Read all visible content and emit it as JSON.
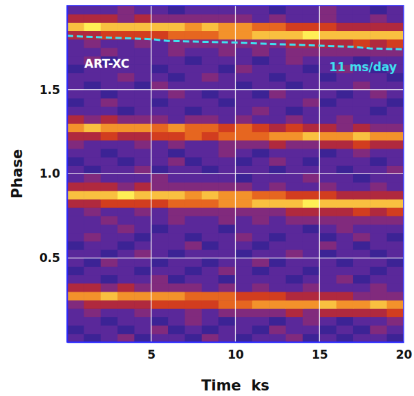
{
  "chart_data": {
    "type": "heatmap",
    "xlabel": "Time  ks",
    "ylabel": "Phase",
    "xlim": [
      0,
      20
    ],
    "ylim": [
      0,
      2
    ],
    "xticks": [
      5,
      10,
      15,
      20
    ],
    "yticks": [
      0.5,
      {
        "value": 1,
        "label": "1.0"
      },
      1.5
    ],
    "grid": true,
    "x_bins": [
      0,
      1,
      2,
      3,
      4,
      5,
      6,
      7,
      8,
      9,
      10,
      11,
      12,
      13,
      14,
      15,
      16,
      17,
      18,
      19,
      20
    ],
    "y_bins": [
      0,
      0.05,
      0.1,
      0.15,
      0.2,
      0.25,
      0.3,
      0.35,
      0.4,
      0.45,
      0.5,
      0.55,
      0.6,
      0.65,
      0.7,
      0.75,
      0.8,
      0.85,
      0.9,
      0.95,
      1,
      1.05,
      1.1,
      1.15,
      1.2,
      1.25,
      1.3,
      1.35,
      1.4,
      1.45,
      1.5,
      1.55,
      1.6,
      1.65,
      1.7,
      1.75,
      1.8,
      1.85,
      1.9,
      1.95,
      2
    ],
    "zlim": [
      0,
      9
    ],
    "cells": [
      [
        2,
        1,
        2,
        3,
        1,
        2,
        2,
        1,
        3,
        2,
        1,
        2,
        2,
        3,
        1,
        2,
        1,
        2,
        2,
        1
      ],
      [
        1,
        2,
        2,
        1,
        2,
        3,
        1,
        2,
        1,
        2,
        2,
        1,
        3,
        2,
        2,
        1,
        2,
        1,
        3,
        2
      ],
      [
        2,
        2,
        1,
        2,
        2,
        1,
        2,
        3,
        2,
        1,
        2,
        2,
        1,
        2,
        3,
        2,
        1,
        2,
        2,
        3
      ],
      [
        2,
        3,
        2,
        2,
        3,
        2,
        2,
        3,
        2,
        3,
        3,
        3,
        3,
        4,
        3,
        4,
        4,
        4,
        4,
        5
      ],
      [
        3,
        4,
        4,
        4,
        4,
        5,
        5,
        5,
        5,
        6,
        6,
        7,
        7,
        7,
        7,
        8,
        7,
        7,
        8,
        7
      ],
      [
        7,
        7,
        8,
        7,
        7,
        7,
        7,
        6,
        6,
        6,
        5,
        5,
        5,
        4,
        4,
        4,
        4,
        3,
        3,
        3
      ],
      [
        4,
        4,
        3,
        4,
        3,
        3,
        3,
        3,
        2,
        3,
        2,
        3,
        2,
        2,
        3,
        2,
        2,
        2,
        3,
        2
      ],
      [
        2,
        2,
        1,
        2,
        2,
        3,
        1,
        2,
        2,
        1,
        2,
        2,
        2,
        1,
        2,
        2,
        3,
        1,
        2,
        2
      ],
      [
        1,
        2,
        2,
        2,
        1,
        2,
        2,
        1,
        2,
        3,
        2,
        1,
        2,
        2,
        1,
        2,
        2,
        2,
        1,
        2
      ],
      [
        2,
        1,
        3,
        2,
        2,
        1,
        2,
        2,
        1,
        2,
        2,
        3,
        1,
        2,
        2,
        2,
        1,
        2,
        2,
        1
      ],
      [
        2,
        2,
        1,
        2,
        3,
        2,
        1,
        2,
        2,
        2,
        1,
        2,
        2,
        3,
        2,
        1,
        2,
        2,
        1,
        2
      ],
      [
        1,
        2,
        2,
        1,
        2,
        2,
        2,
        3,
        1,
        2,
        2,
        1,
        2,
        2,
        2,
        3,
        2,
        1,
        2,
        2
      ],
      [
        2,
        3,
        2,
        2,
        1,
        2,
        2,
        1,
        2,
        2,
        3,
        2,
        1,
        2,
        2,
        1,
        2,
        3,
        2,
        1
      ],
      [
        2,
        2,
        2,
        3,
        2,
        1,
        2,
        2,
        2,
        1,
        2,
        2,
        2,
        2,
        1,
        2,
        3,
        2,
        2,
        2
      ],
      [
        2,
        2,
        3,
        2,
        2,
        2,
        3,
        2,
        2,
        3,
        2,
        3,
        2,
        3,
        3,
        3,
        3,
        3,
        3,
        3
      ],
      [
        2,
        3,
        2,
        2,
        3,
        2,
        3,
        3,
        3,
        3,
        3,
        3,
        3,
        4,
        4,
        4,
        4,
        5,
        4,
        5
      ],
      [
        4,
        4,
        5,
        5,
        5,
        5,
        6,
        6,
        6,
        7,
        7,
        8,
        8,
        8,
        9,
        8,
        8,
        8,
        8,
        8
      ],
      [
        8,
        8,
        8,
        9,
        8,
        8,
        8,
        7,
        8,
        7,
        7,
        6,
        6,
        5,
        5,
        5,
        4,
        4,
        4,
        4
      ],
      [
        4,
        4,
        4,
        3,
        4,
        3,
        3,
        3,
        3,
        3,
        3,
        2,
        3,
        2,
        2,
        3,
        2,
        2,
        3,
        2
      ],
      [
        2,
        3,
        2,
        2,
        2,
        3,
        2,
        2,
        2,
        2,
        1,
        2,
        2,
        2,
        3,
        2,
        2,
        1,
        2,
        2
      ],
      [
        2,
        1,
        2,
        2,
        3,
        1,
        2,
        2,
        1,
        2,
        2,
        2,
        1,
        2,
        2,
        2,
        1,
        2,
        2,
        3
      ],
      [
        1,
        2,
        2,
        1,
        2,
        2,
        3,
        1,
        2,
        2,
        1,
        2,
        3,
        2,
        1,
        2,
        2,
        2,
        1,
        2
      ],
      [
        2,
        2,
        1,
        2,
        2,
        2,
        1,
        2,
        2,
        3,
        2,
        1,
        2,
        2,
        2,
        1,
        2,
        3,
        2,
        2
      ],
      [
        3,
        2,
        2,
        2,
        3,
        2,
        3,
        2,
        2,
        3,
        3,
        3,
        4,
        3,
        3,
        4,
        4,
        5,
        4,
        4
      ],
      [
        4,
        4,
        5,
        4,
        4,
        5,
        5,
        6,
        5,
        6,
        6,
        6,
        7,
        7,
        8,
        7,
        7,
        8,
        7,
        7
      ],
      [
        7,
        8,
        7,
        7,
        7,
        6,
        7,
        6,
        6,
        5,
        6,
        5,
        4,
        5,
        4,
        4,
        3,
        4,
        3,
        3
      ],
      [
        4,
        3,
        4,
        3,
        3,
        3,
        2,
        3,
        3,
        2,
        3,
        2,
        2,
        3,
        2,
        2,
        3,
        2,
        2,
        2
      ],
      [
        2,
        2,
        2,
        1,
        2,
        2,
        2,
        1,
        2,
        2,
        2,
        3,
        2,
        1,
        2,
        2,
        2,
        2,
        1,
        2
      ],
      [
        1,
        2,
        3,
        2,
        2,
        1,
        2,
        2,
        2,
        1,
        2,
        2,
        2,
        2,
        3,
        1,
        2,
        2,
        2,
        1
      ],
      [
        2,
        2,
        1,
        2,
        2,
        2,
        3,
        2,
        1,
        2,
        2,
        1,
        3,
        2,
        2,
        2,
        1,
        2,
        3,
        2
      ],
      [
        2,
        1,
        2,
        2,
        1,
        3,
        2,
        2,
        2,
        2,
        1,
        2,
        2,
        1,
        2,
        2,
        2,
        3,
        2,
        2
      ],
      [
        2,
        2,
        2,
        3,
        2,
        2,
        1,
        2,
        3,
        2,
        2,
        2,
        1,
        2,
        2,
        1,
        2,
        2,
        2,
        1
      ],
      [
        1,
        2,
        2,
        2,
        2,
        1,
        2,
        2,
        2,
        1,
        3,
        2,
        2,
        2,
        1,
        2,
        3,
        2,
        1,
        2
      ],
      [
        2,
        3,
        1,
        2,
        2,
        2,
        2,
        1,
        2,
        2,
        2,
        1,
        2,
        3,
        2,
        2,
        2,
        1,
        2,
        2
      ],
      [
        2,
        2,
        3,
        2,
        2,
        2,
        3,
        2,
        2,
        3,
        2,
        3,
        2,
        3,
        3,
        3,
        3,
        3,
        3,
        3
      ],
      [
        2,
        3,
        2,
        2,
        3,
        2,
        3,
        3,
        3,
        3,
        3,
        3,
        3,
        4,
        4,
        4,
        4,
        5,
        4,
        5
      ],
      [
        4,
        4,
        5,
        5,
        5,
        5,
        6,
        6,
        6,
        7,
        7,
        8,
        8,
        8,
        9,
        8,
        8,
        8,
        8,
        8
      ],
      [
        8,
        9,
        8,
        8,
        8,
        8,
        8,
        7,
        8,
        7,
        7,
        6,
        6,
        5,
        5,
        5,
        4,
        4,
        4,
        4
      ],
      [
        4,
        4,
        4,
        3,
        4,
        3,
        3,
        3,
        3,
        3,
        3,
        2,
        3,
        2,
        2,
        3,
        2,
        2,
        3,
        2
      ],
      [
        2,
        2,
        2,
        3,
        2,
        2,
        1,
        2,
        2,
        2,
        2,
        2,
        1,
        2,
        2,
        3,
        2,
        2,
        1,
        2
      ]
    ],
    "annotations": [
      {
        "text": "ART-XC",
        "color": "#ffffff"
      }
    ],
    "series": [
      {
        "name": "11 ms/day",
        "color": "#40e0f0",
        "line_style": "dashed",
        "x": [
          0,
          1,
          5,
          6,
          10,
          14,
          17,
          18,
          20
        ],
        "values": [
          1.82,
          1.815,
          1.8,
          1.79,
          1.78,
          1.765,
          1.755,
          1.745,
          1.74
        ]
      }
    ]
  }
}
